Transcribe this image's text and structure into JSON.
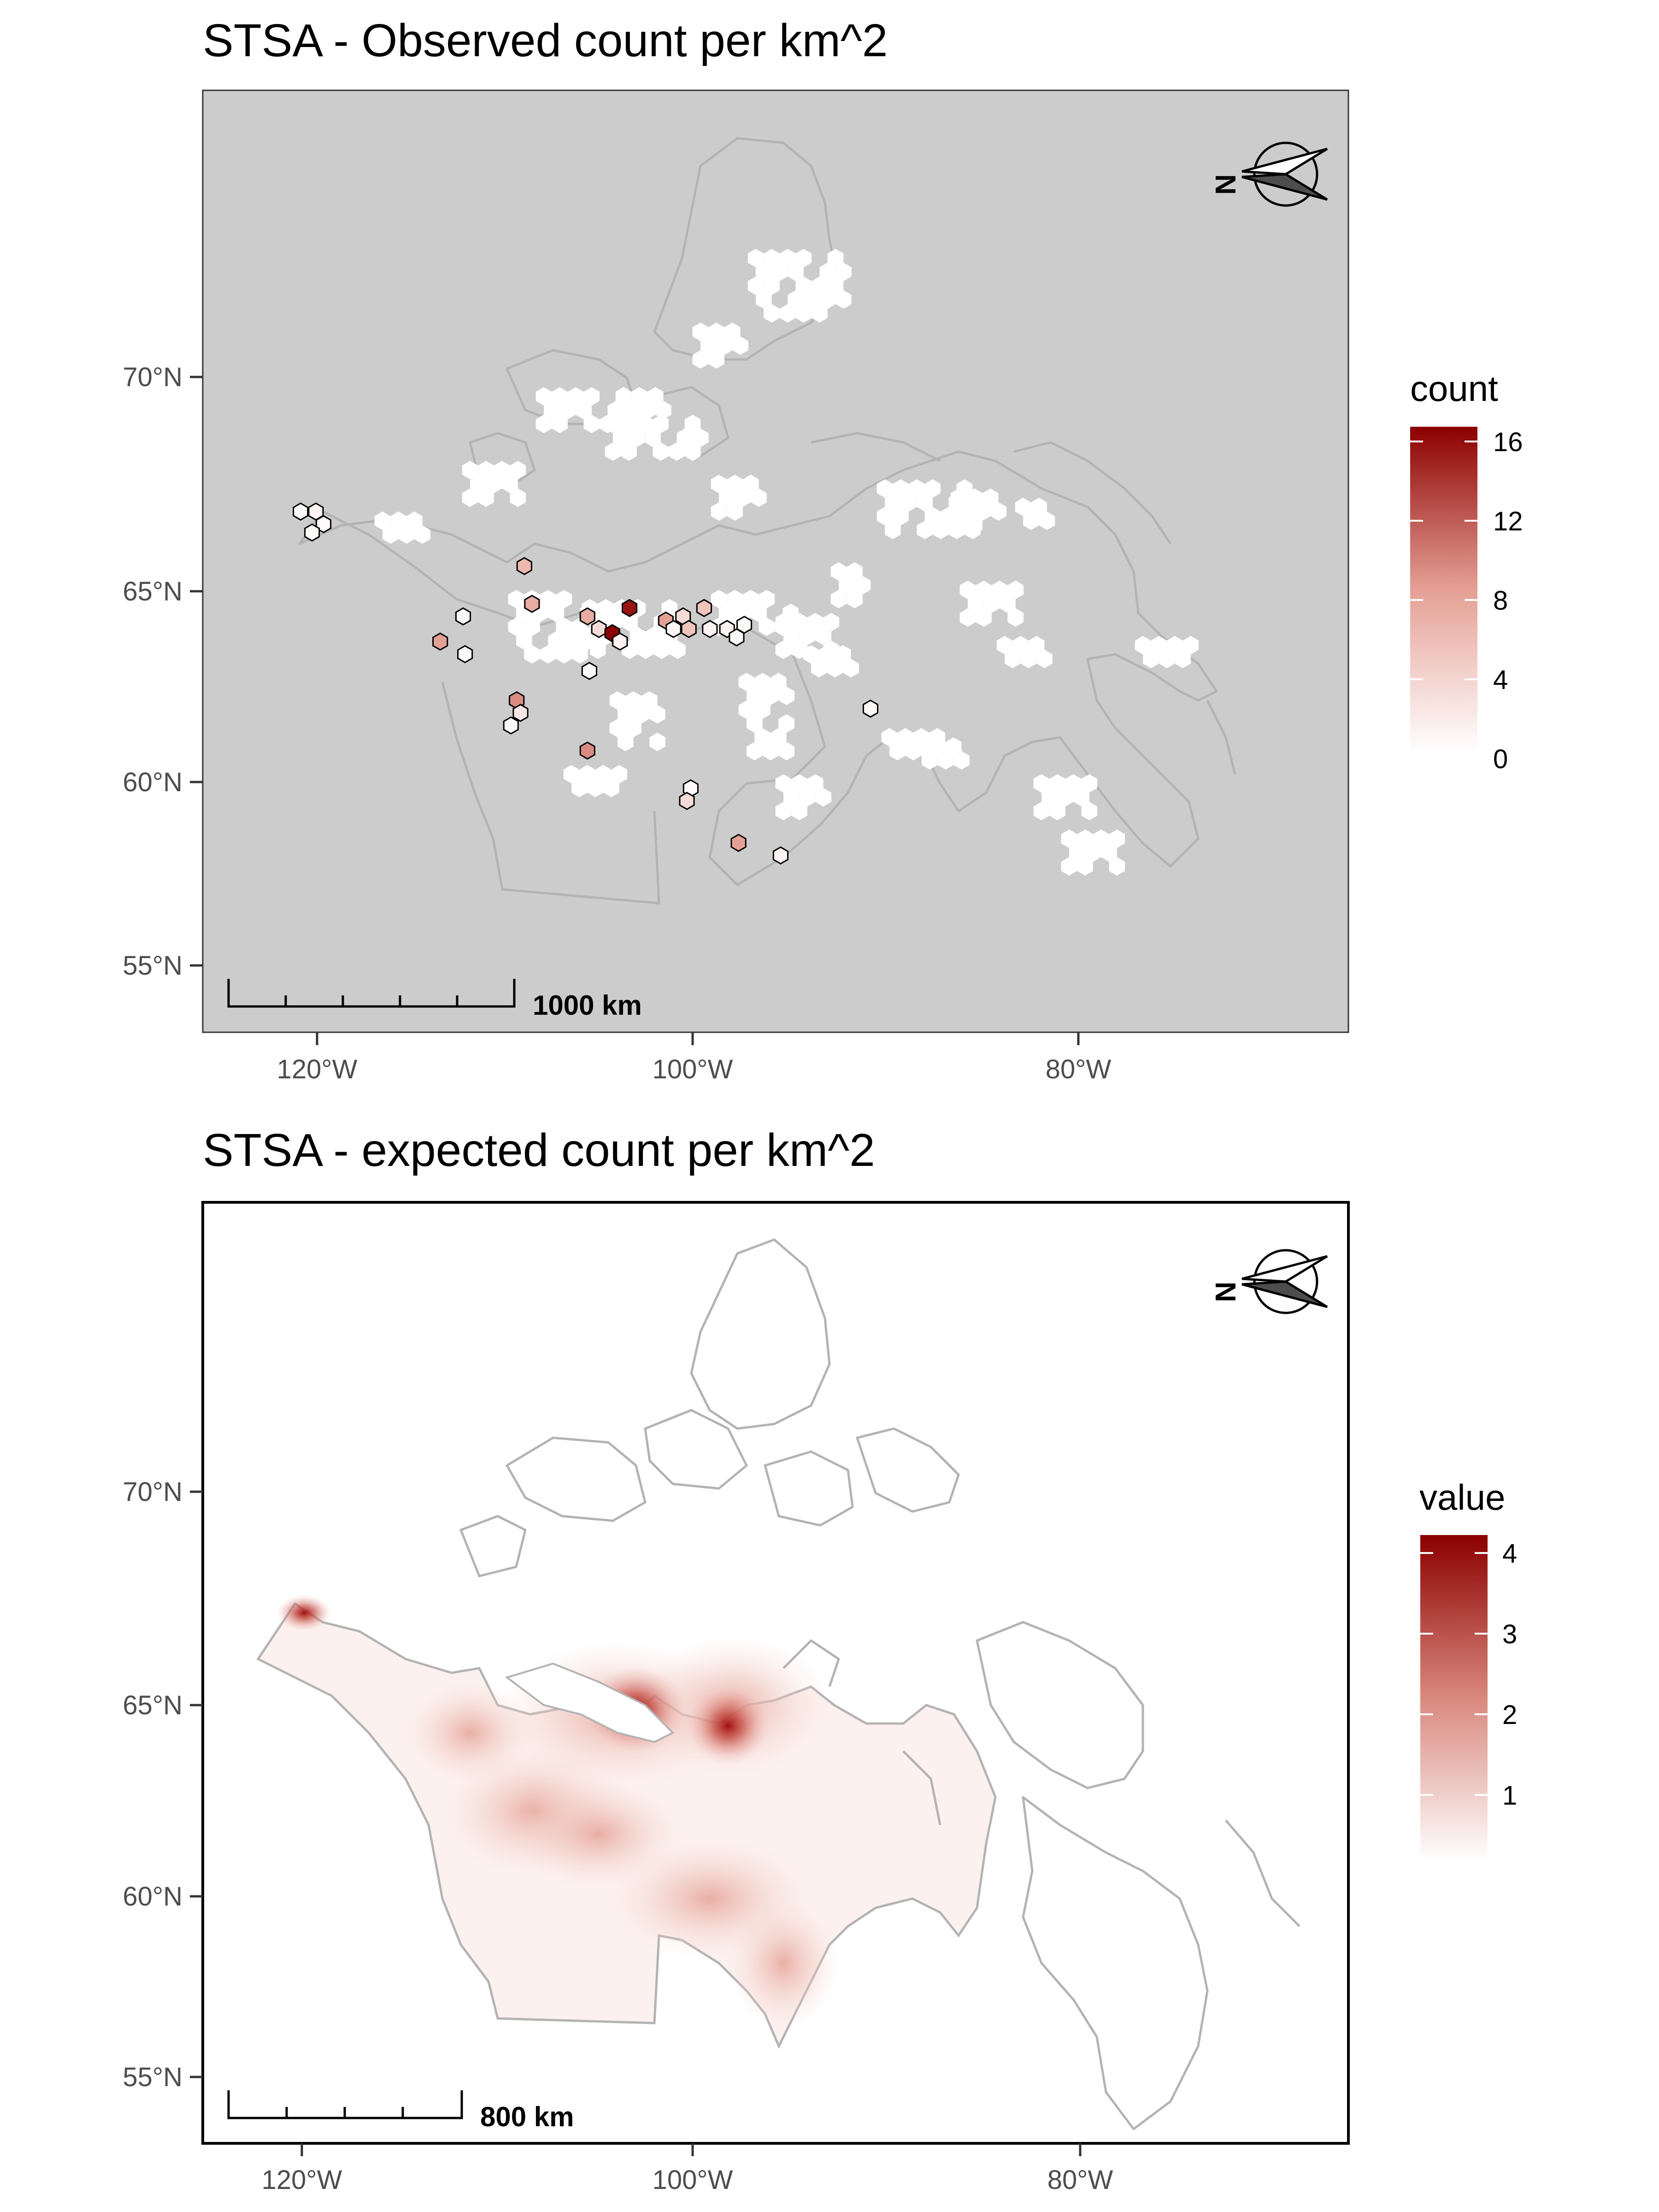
{
  "panels": [
    {
      "title": "STSA - Observed count per km^2",
      "y_ticks": [
        "70°N",
        "65°N",
        "60°N",
        "55°N"
      ],
      "x_ticks": [
        "120°W",
        "100°W",
        "80°W"
      ],
      "legend_title": "count",
      "legend_labels": [
        "16",
        "12",
        "8",
        "4",
        "0"
      ],
      "scale_label": "1000 km",
      "compass_label": "N"
    },
    {
      "title": "STSA - expected count per km^2",
      "y_ticks": [
        "70°N",
        "65°N",
        "60°N",
        "55°N"
      ],
      "x_ticks": [
        "120°W",
        "100°W",
        "80°W"
      ],
      "legend_title": "value",
      "legend_labels": [
        "4",
        "3",
        "2",
        "1"
      ],
      "scale_label": "800 km",
      "compass_label": "N"
    }
  ],
  "colors": {
    "panel1_background": "#cccccc",
    "land_outline": "#b3b3b3",
    "scale_low": "#ffffff",
    "scale_high": "#8b0000"
  },
  "chart_data": [
    {
      "type": "heatmap",
      "title": "STSA - Observed count per km^2",
      "legend": "count",
      "legend_range": [
        0,
        16
      ],
      "hex_cells_with_counts": [
        {
          "lon": -120.5,
          "lat": 66.9,
          "count": 0.5
        },
        {
          "lon": -119.7,
          "lat": 66.9,
          "count": 1
        },
        {
          "lon": -119.3,
          "lat": 66.6,
          "count": 0.5
        },
        {
          "lon": -119.9,
          "lat": 66.4,
          "count": 0.5
        },
        {
          "lon": -108.8,
          "lat": 65.6,
          "count": 6
        },
        {
          "lon": -108.4,
          "lat": 64.7,
          "count": 7
        },
        {
          "lon": -112.0,
          "lat": 64.4,
          "count": 0.5
        },
        {
          "lon": -113.2,
          "lat": 63.8,
          "count": 8
        },
        {
          "lon": -111.9,
          "lat": 63.5,
          "count": 0.5
        },
        {
          "lon": -105.5,
          "lat": 64.4,
          "count": 7
        },
        {
          "lon": -104.9,
          "lat": 64.1,
          "count": 3
        },
        {
          "lon": -104.2,
          "lat": 64.0,
          "count": 16
        },
        {
          "lon": -103.8,
          "lat": 63.8,
          "count": 1
        },
        {
          "lon": -103.3,
          "lat": 64.6,
          "count": 15
        },
        {
          "lon": -105.4,
          "lat": 63.1,
          "count": 0.5
        },
        {
          "lon": -109.2,
          "lat": 62.4,
          "count": 9
        },
        {
          "lon": -109.0,
          "lat": 62.1,
          "count": 2
        },
        {
          "lon": -109.5,
          "lat": 61.8,
          "count": 0.5
        },
        {
          "lon": -105.5,
          "lat": 61.2,
          "count": 9
        },
        {
          "lon": -101.4,
          "lat": 64.3,
          "count": 8
        },
        {
          "lon": -101.0,
          "lat": 64.1,
          "count": 0.5
        },
        {
          "lon": -100.5,
          "lat": 64.4,
          "count": 3
        },
        {
          "lon": -100.2,
          "lat": 64.1,
          "count": 5
        },
        {
          "lon": -99.4,
          "lat": 64.6,
          "count": 5
        },
        {
          "lon": -99.1,
          "lat": 64.1,
          "count": 1
        },
        {
          "lon": -98.2,
          "lat": 64.1,
          "count": 1
        },
        {
          "lon": -97.7,
          "lat": 63.9,
          "count": 0.5
        },
        {
          "lon": -97.3,
          "lat": 64.2,
          "count": 0.5
        },
        {
          "lon": -100.1,
          "lat": 60.3,
          "count": 0.5
        },
        {
          "lon": -100.3,
          "lat": 60.0,
          "count": 3
        },
        {
          "lon": -97.6,
          "lat": 59.0,
          "count": 8
        },
        {
          "lon": -95.4,
          "lat": 58.7,
          "count": 1
        },
        {
          "lon": -90.7,
          "lat": 62.2,
          "count": 0.5
        }
      ]
    },
    {
      "type": "heatmap",
      "title": "STSA - expected count per km^2",
      "legend": "value",
      "legend_range": [
        0,
        4.2
      ],
      "hotspots": [
        {
          "lon": -103.5,
          "lat": 64.8,
          "value": 4.2
        },
        {
          "lon": -99.2,
          "lat": 64.3,
          "value": 4.0
        },
        {
          "lon": -120.5,
          "lat": 67.2,
          "value": 2.5
        },
        {
          "lon": -110.2,
          "lat": 62.5,
          "value": 1.4
        },
        {
          "lon": -106.5,
          "lat": 61.8,
          "value": 1.3
        },
        {
          "lon": -101.0,
          "lat": 60.2,
          "value": 1.0
        }
      ]
    }
  ]
}
